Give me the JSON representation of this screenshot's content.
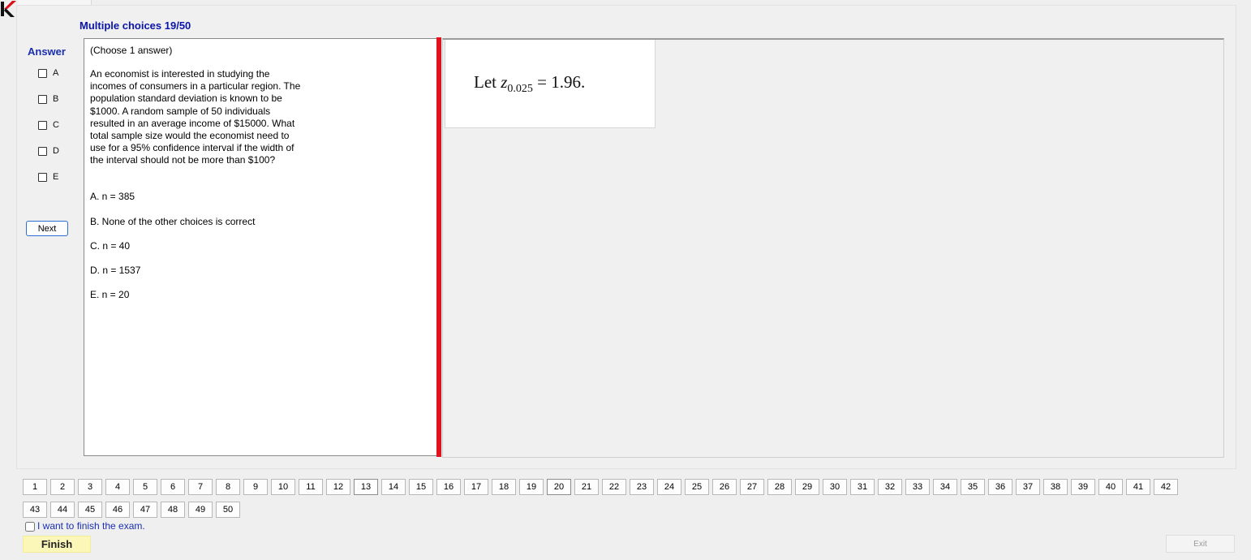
{
  "header": {
    "title": "Multiple choices 19/50"
  },
  "answer_panel": {
    "label": "Answer",
    "options": [
      "A",
      "B",
      "C",
      "D",
      "E"
    ],
    "next_label": "Next"
  },
  "question": {
    "instruction": "(Choose 1 answer)",
    "lines": [
      "An economist is interested in studying the",
      "incomes of consumers in a particular region. The",
      "population standard deviation is known to be",
      "$1000. A random sample of 50 individuals",
      "resulted in an average income of $15000. What",
      "total sample size would the economist need to",
      "use for a 95% confidence interval if the width of",
      "the interval should not be more than $100?"
    ],
    "choices": [
      "A.  n = 385",
      "B.  None of the other choices is correct",
      "C.  n = 40",
      "D.  n = 1537",
      "E.  n = 20"
    ]
  },
  "hint": {
    "prefix": "Let ",
    "variable": "z",
    "subscript": "0.025",
    "suffix": " = 1.96."
  },
  "question_nav": {
    "numbers": [
      "1",
      "2",
      "3",
      "4",
      "5",
      "6",
      "7",
      "8",
      "9",
      "10",
      "11",
      "12",
      "13",
      "14",
      "15",
      "16",
      "17",
      "18",
      "19",
      "20",
      "21",
      "22",
      "23",
      "24",
      "25",
      "26",
      "27",
      "28",
      "29",
      "30",
      "31",
      "32",
      "33",
      "34",
      "35",
      "36",
      "37",
      "38",
      "39",
      "40",
      "41",
      "42",
      "43",
      "44",
      "45",
      "46",
      "47",
      "48",
      "49",
      "50"
    ],
    "answered": [
      "13",
      "20"
    ]
  },
  "footer": {
    "finish_checkbox_label": "I want to finish the exam.",
    "finish_label": "Finish",
    "exit_label": "Exit"
  },
  "colors": {
    "title_blue": "#0a14a8",
    "divider_red": "#e0141c",
    "finish_yellow": "#fbf7b8",
    "logo_red": "#d8101a"
  }
}
